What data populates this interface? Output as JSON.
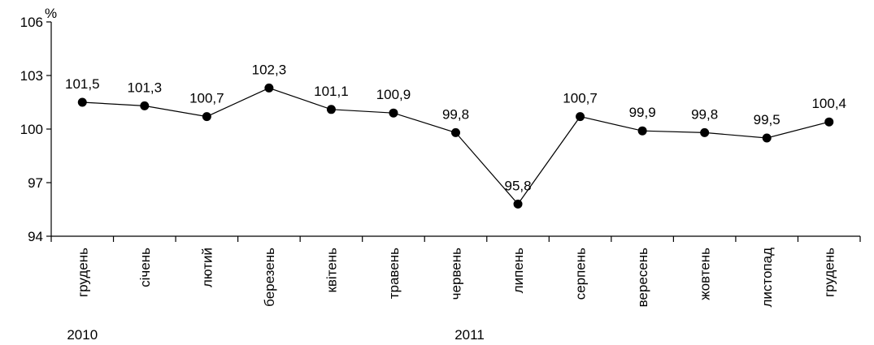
{
  "chart_data": {
    "type": "line",
    "title": "",
    "xlabel": "",
    "ylabel": "%",
    "ylim": [
      94,
      106
    ],
    "yticks": [
      94,
      97,
      100,
      103,
      106
    ],
    "grid": false,
    "categories": [
      "грудень",
      "січень",
      "лютий",
      "березень",
      "квітень",
      "травень",
      "червень",
      "липень",
      "серпень",
      "вересень",
      "жовтень",
      "листопад",
      "грудень"
    ],
    "series": [
      {
        "values": [
          101.5,
          101.3,
          100.7,
          102.3,
          101.1,
          100.9,
          99.8,
          95.8,
          100.7,
          99.9,
          99.8,
          99.5,
          100.4
        ]
      }
    ],
    "data_labels": [
      "101,5",
      "101,3",
      "100,7",
      "102,3",
      "101,1",
      "100,9",
      "99,8",
      "95,8",
      "100,7",
      "99,9",
      "99,8",
      "99,5",
      "100,4"
    ],
    "year_labels": [
      "2010",
      "2011"
    ],
    "colors": {
      "line": "#000000",
      "marker": "#000000",
      "axis": "#000000"
    }
  }
}
